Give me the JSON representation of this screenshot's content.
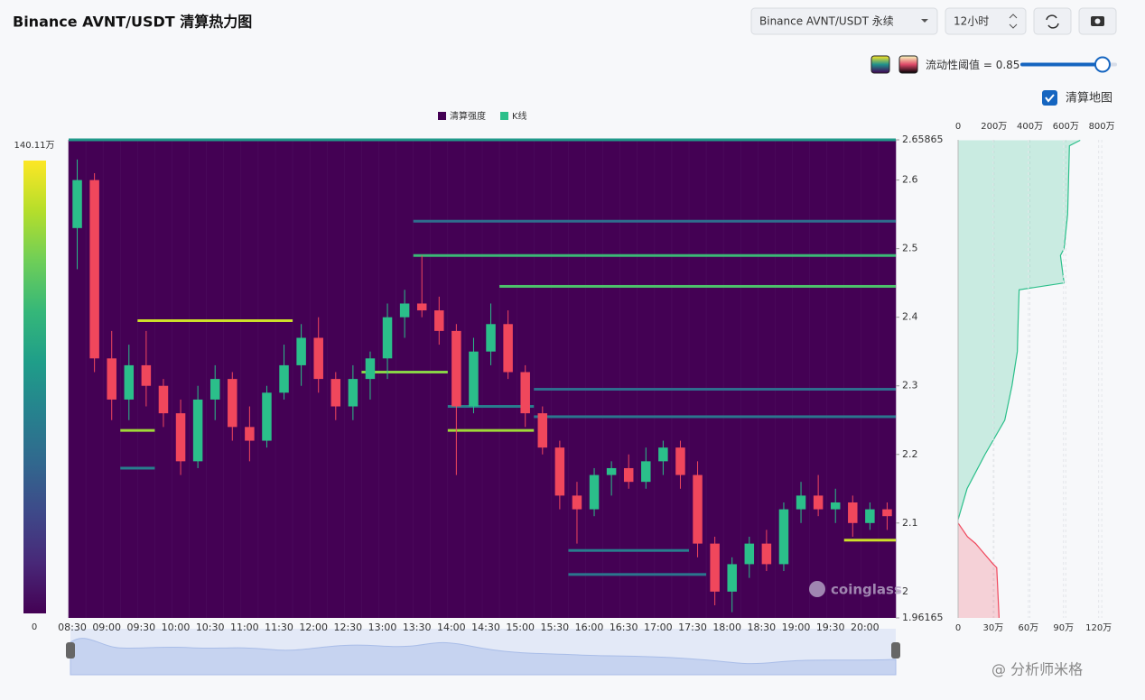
{
  "header": {
    "title": "Binance AVNT/USDT 清算热力图",
    "pair_select": "Binance AVNT/USDT 永续",
    "range_select": "12小时",
    "threshold_label": "流动性阈值 = ",
    "threshold": 0.85,
    "map_toggle": "清算地图"
  },
  "chart_data": {
    "type": "heatmap-candlestick",
    "legend": [
      "清算强度",
      "K线"
    ],
    "legend_colors": [
      "#440154",
      "#2bbf8a"
    ],
    "up_color": "#2bbf8a",
    "down_color": "#f0475c",
    "categories": [
      "08:30",
      null,
      "09:00",
      null,
      "09:30",
      null,
      "10:00",
      null,
      "10:30",
      null,
      "11:00",
      null,
      "11:30",
      null,
      "12:00",
      null,
      "12:30",
      null,
      "13:00",
      null,
      "13:30",
      null,
      "14:00",
      null,
      "14:30",
      null,
      "15:00",
      null,
      "15:30",
      null,
      "16:00",
      null,
      "16:30",
      null,
      "17:00",
      null,
      "17:30",
      null,
      "18:00",
      null,
      "18:30",
      null,
      "19:00",
      null,
      "19:30",
      null,
      "20:00",
      null
    ],
    "open": [
      2.53,
      2.6,
      2.34,
      2.28,
      2.33,
      2.3,
      2.26,
      2.19,
      2.28,
      2.31,
      2.24,
      2.22,
      2.29,
      2.33,
      2.37,
      2.31,
      2.27,
      2.31,
      2.34,
      2.4,
      2.42,
      2.41,
      2.38,
      2.27,
      2.35,
      2.39,
      2.32,
      2.26,
      2.21,
      2.14,
      2.12,
      2.17,
      2.18,
      2.16,
      2.19,
      2.21,
      2.17,
      2.07,
      2.0,
      2.04,
      2.07,
      2.04,
      2.12,
      2.14,
      2.12,
      2.13,
      2.1,
      2.12
    ],
    "high": [
      2.63,
      2.61,
      2.38,
      2.36,
      2.38,
      2.31,
      2.28,
      2.3,
      2.33,
      2.32,
      2.27,
      2.3,
      2.36,
      2.39,
      2.4,
      2.32,
      2.33,
      2.35,
      2.42,
      2.44,
      2.49,
      2.43,
      2.39,
      2.37,
      2.42,
      2.41,
      2.33,
      2.27,
      2.22,
      2.16,
      2.18,
      2.19,
      2.2,
      2.21,
      2.22,
      2.22,
      2.19,
      2.08,
      2.05,
      2.08,
      2.09,
      2.13,
      2.16,
      2.17,
      2.15,
      2.14,
      2.13,
      2.13
    ],
    "low": [
      2.47,
      2.32,
      2.25,
      2.25,
      2.27,
      2.24,
      2.17,
      2.18,
      2.25,
      2.22,
      2.19,
      2.21,
      2.28,
      2.3,
      2.29,
      2.25,
      2.25,
      2.28,
      2.31,
      2.37,
      2.4,
      2.36,
      2.17,
      2.26,
      2.33,
      2.31,
      2.24,
      2.2,
      2.12,
      2.07,
      2.11,
      2.14,
      2.15,
      2.15,
      2.17,
      2.15,
      2.05,
      1.98,
      1.97,
      2.02,
      2.03,
      2.03,
      2.1,
      2.11,
      2.1,
      2.08,
      2.09,
      2.09
    ],
    "close": [
      2.6,
      2.34,
      2.28,
      2.33,
      2.3,
      2.26,
      2.19,
      2.28,
      2.31,
      2.24,
      2.22,
      2.29,
      2.33,
      2.37,
      2.31,
      2.27,
      2.31,
      2.34,
      2.4,
      2.42,
      2.41,
      2.38,
      2.27,
      2.35,
      2.39,
      2.32,
      2.26,
      2.21,
      2.14,
      2.12,
      2.17,
      2.18,
      2.16,
      2.19,
      2.21,
      2.17,
      2.07,
      2.0,
      2.04,
      2.07,
      2.04,
      2.12,
      2.14,
      2.12,
      2.13,
      2.1,
      2.12,
      2.11
    ],
    "ylim": [
      1.96165,
      2.65865
    ],
    "yticks": [
      1.96165,
      2,
      2.1,
      2.2,
      2.3,
      2.4,
      2.5,
      2.6,
      2.65865
    ],
    "levels": [
      {
        "price": 2.65865,
        "start": 0,
        "end": 48,
        "value": 750000
      },
      {
        "price": 2.54,
        "start": 20,
        "end": 48,
        "value": 500000
      },
      {
        "price": 2.49,
        "start": 20,
        "end": 48,
        "value": 950000
      },
      {
        "price": 2.445,
        "start": 25,
        "end": 48,
        "value": 1000000
      },
      {
        "price": 2.395,
        "start": 4,
        "end": 13,
        "value": 1300000
      },
      {
        "price": 2.32,
        "start": 17,
        "end": 22,
        "value": 1150000
      },
      {
        "price": 2.295,
        "start": 27,
        "end": 48,
        "value": 500000
      },
      {
        "price": 2.27,
        "start": 22,
        "end": 27,
        "value": 600000
      },
      {
        "price": 2.255,
        "start": 27,
        "end": 48,
        "value": 550000
      },
      {
        "price": 2.235,
        "start": 22,
        "end": 27,
        "value": 1200000
      },
      {
        "price": 2.235,
        "start": 3,
        "end": 5,
        "value": 1200000
      },
      {
        "price": 2.18,
        "start": 3,
        "end": 5,
        "value": 600000
      },
      {
        "price": 2.075,
        "start": 45,
        "end": 48,
        "value": 1300000
      },
      {
        "price": 2.06,
        "start": 29,
        "end": 36,
        "value": 600000
      },
      {
        "price": 2.025,
        "start": 29,
        "end": 37,
        "value": 550000
      }
    ],
    "clim": [
      0,
      1401100
    ],
    "colorbar_ticks": [
      0,
      {
        "value": 1401100,
        "label": "140.11万"
      }
    ],
    "short_profile": {
      "color": "#2bbf8a",
      "xlim": [
        0,
        9000000
      ],
      "xticks": [
        0,
        {
          "value": 2000000,
          "label": "200万"
        },
        {
          "value": 4000000,
          "label": "400万"
        },
        {
          "value": 6000000,
          "label": "600万"
        },
        {
          "value": 8000000,
          "label": "800万"
        }
      ],
      "prices": [
        2.105,
        2.15,
        2.2,
        2.25,
        2.3,
        2.35,
        2.4,
        2.44,
        2.45,
        2.49,
        2.5,
        2.55,
        2.6,
        2.65,
        2.658
      ],
      "values": [
        0,
        500000,
        1500000,
        2600000,
        3000000,
        3300000,
        3350000,
        3400000,
        5900000,
        5700000,
        5900000,
        6100000,
        6150000,
        6200000,
        6800000
      ]
    },
    "long_profile": {
      "color": "#f0475c",
      "xlim": [
        0,
        1380000
      ],
      "xticks": [
        0,
        {
          "value": 300000,
          "label": "30万"
        },
        {
          "value": 600000,
          "label": "60万"
        },
        {
          "value": 900000,
          "label": "90万"
        },
        {
          "value": 1200000,
          "label": "120万"
        }
      ],
      "prices": [
        2.1,
        2.08,
        2.07,
        2.06,
        2.04,
        2.035,
        1.9617
      ],
      "values": [
        0,
        80000,
        150000,
        200000,
        300000,
        330000,
        350000
      ]
    },
    "watermark": "coinglass"
  },
  "footer": {
    "credit": "@ 分析师米格"
  }
}
